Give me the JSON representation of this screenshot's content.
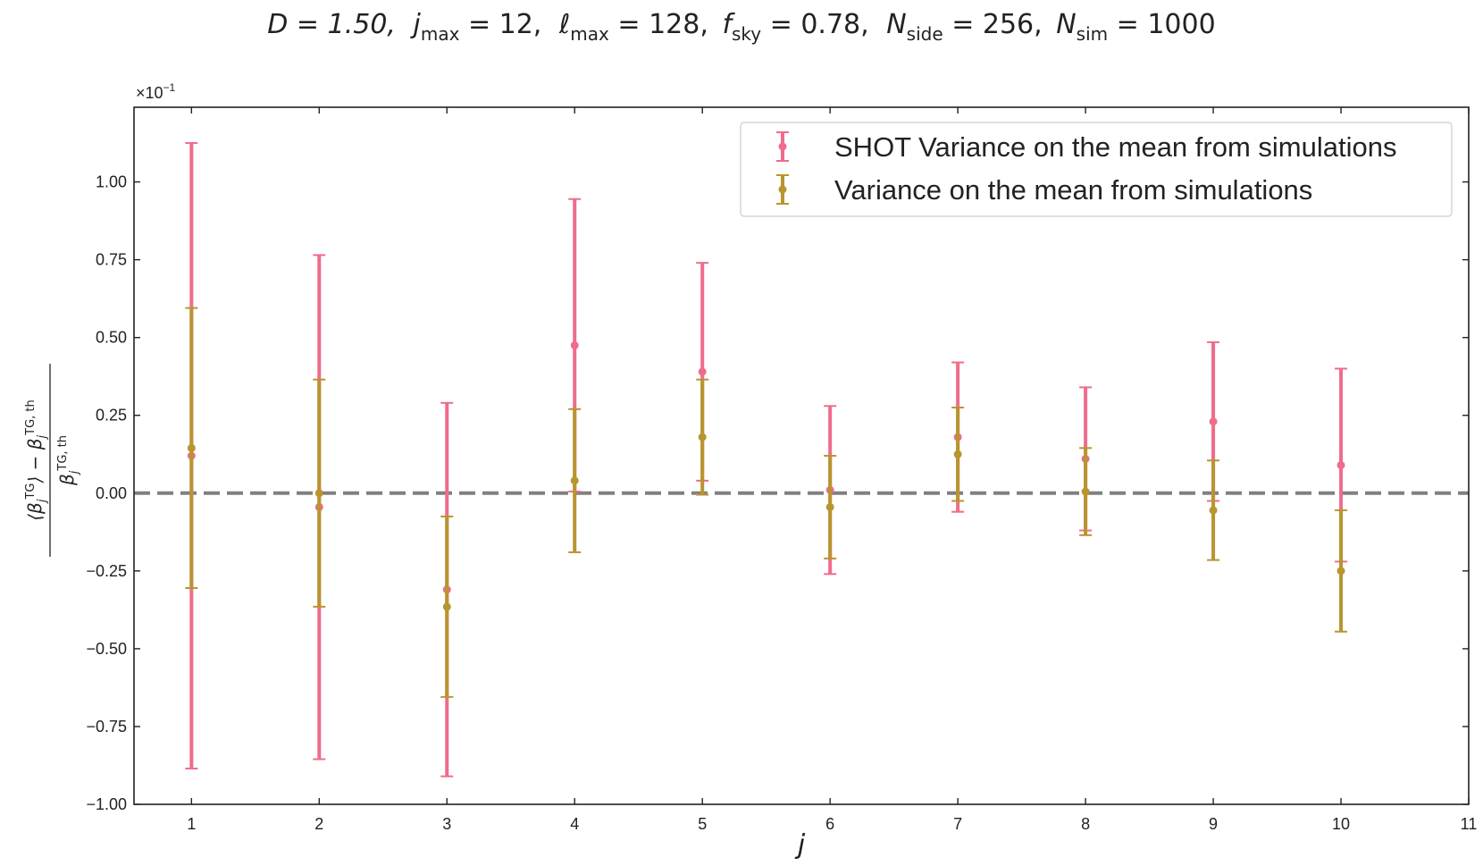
{
  "chart_data": {
    "type": "scatter",
    "title_parts": {
      "D": "D = 1.50,",
      "jmax": "j",
      "jmax_sub": "max",
      "jmax_val": " = 12,",
      "lmax": "ℓ",
      "lmax_sub": "max",
      "lmax_val": " = 128,",
      "fsky": "f",
      "fsky_sub": "sky",
      "fsky_val": " = 0.78,",
      "nside": "N",
      "nside_sub": "side",
      "nside_val": " = 256,",
      "nsim": "N",
      "nsim_sub": "sim",
      "nsim_val": " = 1000"
    },
    "xlabel": "j",
    "ylabel": {
      "numerator": "⟨β",
      "num_sub": "j",
      "num_sup": "TG",
      "num_mid": "⟩ − β",
      "num_sub2": "j",
      "num_sup2": "TG, th",
      "denominator": "β",
      "den_sub": "j",
      "den_sup": "TG, th"
    },
    "y_multiplier_base": "×10",
    "y_multiplier_exp": "−1",
    "xlim": [
      0.55,
      11
    ],
    "ylim": [
      -1.0,
      1.24
    ],
    "x_ticks": [
      1,
      2,
      3,
      4,
      5,
      6,
      7,
      8,
      9,
      10,
      11
    ],
    "y_ticks": [
      -1.0,
      -0.75,
      -0.5,
      -0.25,
      0.0,
      0.25,
      0.5,
      0.75,
      1.0
    ],
    "y_tick_labels": [
      "−1.00",
      "−0.75",
      "−0.50",
      "−0.25",
      "0.00",
      "0.25",
      "0.50",
      "0.75",
      "1.00"
    ],
    "reference_line": {
      "y": 0.0,
      "style": "dashed",
      "color": "#808080"
    },
    "legend_position": "top-right",
    "series": [
      {
        "name": "SHOT Variance on the mean from simulations",
        "color": "#ee6d8a",
        "x": [
          1,
          2,
          3,
          4,
          5,
          6,
          7,
          8,
          9,
          10
        ],
        "y": [
          0.12,
          -0.045,
          -0.31,
          0.475,
          0.39,
          0.01,
          0.18,
          0.11,
          0.23,
          0.09
        ],
        "err": [
          1.005,
          0.81,
          0.6,
          0.47,
          0.35,
          0.27,
          0.24,
          0.23,
          0.255,
          0.31
        ]
      },
      {
        "name": "Variance on the mean from simulations",
        "color": "#b8952f",
        "x": [
          1,
          2,
          3,
          4,
          5,
          6,
          7,
          8,
          9,
          10
        ],
        "y": [
          0.145,
          0.0,
          -0.365,
          0.04,
          0.18,
          -0.045,
          0.125,
          0.005,
          -0.055,
          -0.25
        ],
        "err": [
          0.45,
          0.365,
          0.29,
          0.23,
          0.185,
          0.165,
          0.15,
          0.14,
          0.16,
          0.195
        ]
      }
    ]
  }
}
